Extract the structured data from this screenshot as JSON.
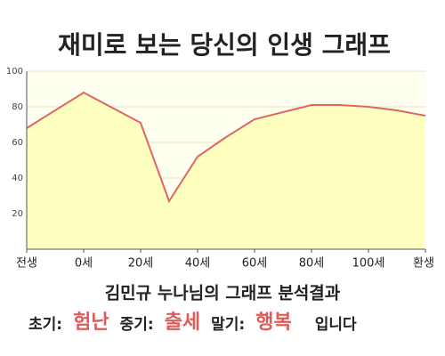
{
  "chart_data": {
    "type": "line",
    "title": "재미로 보는 당신의 인생 그래프",
    "x": [
      -20,
      0,
      20,
      30,
      40,
      50,
      60,
      70,
      80,
      90,
      100,
      110,
      120
    ],
    "series": [
      {
        "name": null,
        "color": "#e06666",
        "values": [
          68,
          88,
          71,
          27,
          52,
          63,
          73,
          77,
          81,
          81,
          80,
          78,
          75
        ]
      }
    ],
    "area_color": "#ffffc0",
    "xlim": [
      -20,
      120
    ],
    "xticks": [
      {
        "value": -20,
        "label": "전생"
      },
      {
        "value": 0,
        "label": "0세"
      },
      {
        "value": 20,
        "label": "20세"
      },
      {
        "value": 40,
        "label": "40세"
      },
      {
        "value": 60,
        "label": "60세"
      },
      {
        "value": 80,
        "label": "80세"
      },
      {
        "value": 100,
        "label": "100세"
      },
      {
        "value": 120,
        "label": "환생"
      }
    ],
    "ylim": [
      0,
      100
    ],
    "yticks": [
      20,
      40,
      60,
      80,
      100
    ],
    "grid": true
  },
  "result": {
    "heading": "김민규 누나님의 그래프 분석결과",
    "items": [
      {
        "label": "초기:",
        "value": "험난"
      },
      {
        "label": "중기:",
        "value": "출세"
      },
      {
        "label": "말기:",
        "value": "행복"
      }
    ],
    "ending": "입니다"
  }
}
